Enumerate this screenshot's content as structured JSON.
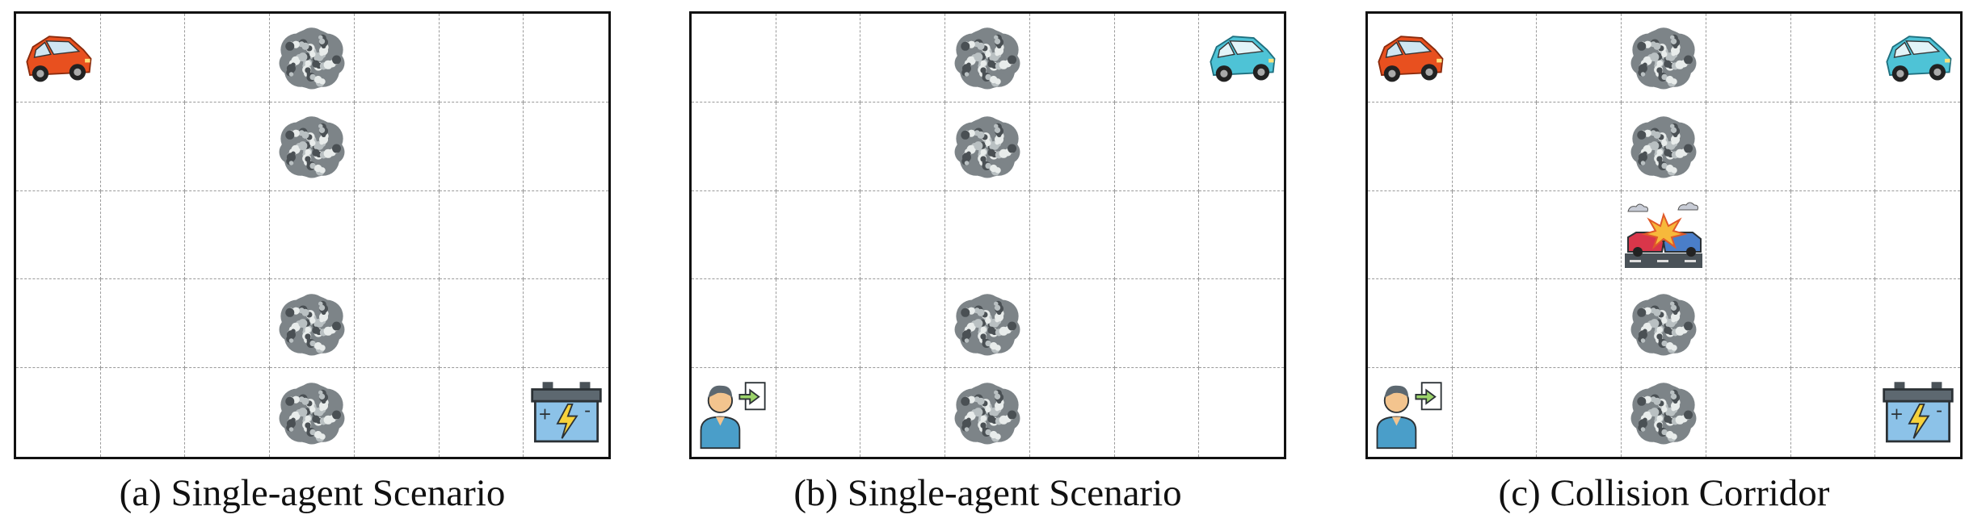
{
  "grid": {
    "columns": 7,
    "rows": 5
  },
  "panels": [
    {
      "caption": "(a) Single-agent Scenario",
      "objects": [
        {
          "type": "red-car",
          "col": 0,
          "row": 0
        },
        {
          "type": "bush",
          "col": 3,
          "row": 0
        },
        {
          "type": "bush",
          "col": 3,
          "row": 1
        },
        {
          "type": "bush",
          "col": 3,
          "row": 3
        },
        {
          "type": "bush",
          "col": 3,
          "row": 4
        },
        {
          "type": "battery",
          "col": 6,
          "row": 4
        }
      ]
    },
    {
      "caption": "(b) Single-agent Scenario",
      "objects": [
        {
          "type": "bush",
          "col": 3,
          "row": 0
        },
        {
          "type": "blue-car",
          "col": 6,
          "row": 0
        },
        {
          "type": "bush",
          "col": 3,
          "row": 1
        },
        {
          "type": "bush",
          "col": 3,
          "row": 3
        },
        {
          "type": "person",
          "col": 0,
          "row": 4
        },
        {
          "type": "bush",
          "col": 3,
          "row": 4
        }
      ]
    },
    {
      "caption": "(c) Collision Corridor",
      "objects": [
        {
          "type": "red-car",
          "col": 0,
          "row": 0
        },
        {
          "type": "bush",
          "col": 3,
          "row": 0
        },
        {
          "type": "blue-car",
          "col": 6,
          "row": 0
        },
        {
          "type": "bush",
          "col": 3,
          "row": 1
        },
        {
          "type": "crash",
          "col": 3,
          "row": 2
        },
        {
          "type": "bush",
          "col": 3,
          "row": 3
        },
        {
          "type": "person",
          "col": 0,
          "row": 4
        },
        {
          "type": "bush",
          "col": 3,
          "row": 4
        },
        {
          "type": "battery",
          "col": 6,
          "row": 4
        }
      ]
    }
  ]
}
